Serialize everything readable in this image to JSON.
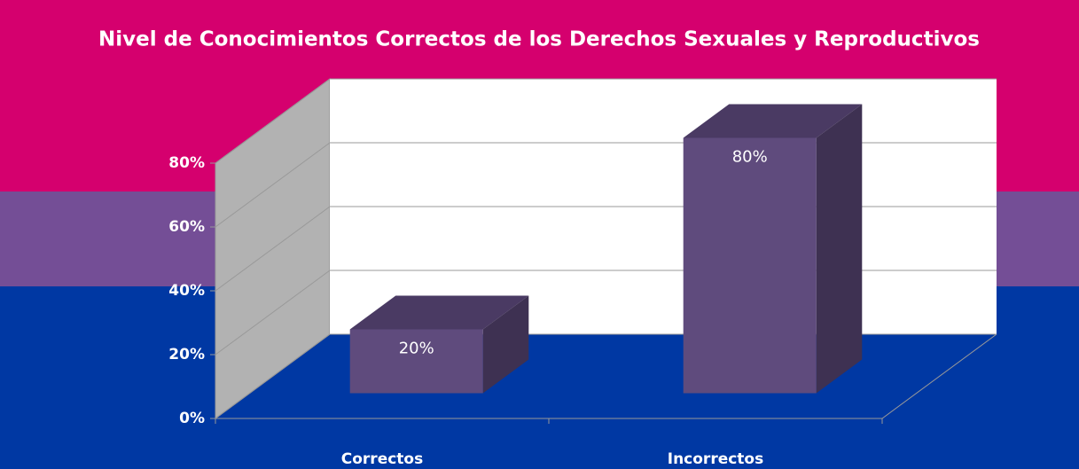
{
  "chart_data": {
    "type": "bar",
    "title": "Nivel de Conocimientos Correctos de los Derechos Sexuales y Reproductivos",
    "categories": [
      "Correctos",
      "Incorrectos"
    ],
    "values": [
      20,
      80
    ],
    "value_labels": [
      "20%",
      "80%"
    ],
    "color": "#5f4b7d",
    "ylim": [
      0,
      80
    ],
    "yticks": [
      {
        "value": 0,
        "label": "0%"
      },
      {
        "value": 20,
        "label": "20%"
      },
      {
        "value": 40,
        "label": "40%"
      },
      {
        "value": 60,
        "label": "60%"
      },
      {
        "value": 80,
        "label": "80%"
      }
    ],
    "grid": true
  }
}
